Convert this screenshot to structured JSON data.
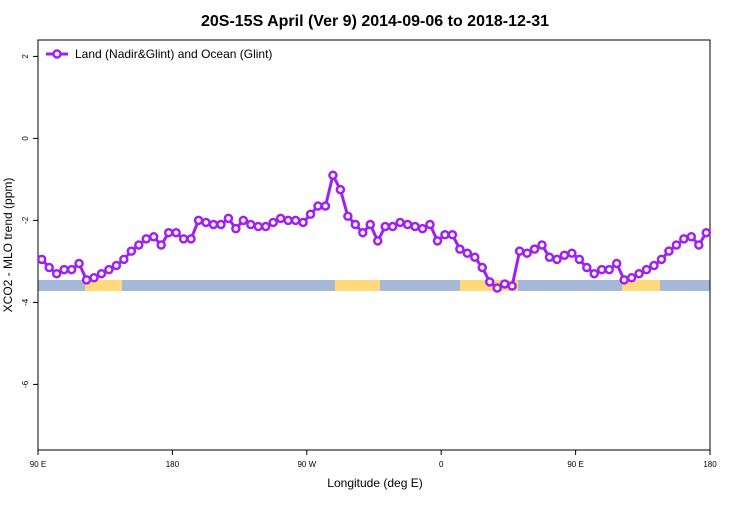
{
  "chart_data": {
    "type": "line",
    "title": "20S-15S April (Ver 9)   2014-09-06 to 2018-12-31",
    "x_label": "Longitude (deg E)",
    "y_label": "XCO2 - MLO trend (ppm)",
    "xlim": [
      90,
      540
    ],
    "ylim": [
      -7.6,
      2.4
    ],
    "xticks": [
      {
        "value": 90,
        "label": "90 E"
      },
      180,
      {
        "value": 270,
        "label": "90 W"
      },
      {
        "value": 360,
        "label": "0"
      },
      {
        "value": 450,
        "label": "90 E"
      },
      {
        "value": 540,
        "label": "180"
      }
    ],
    "yticks": [
      2,
      0,
      -2,
      -4,
      -6
    ],
    "legend": "top-left",
    "x": [
      92.5,
      97.5,
      102.5,
      107.5,
      112.5,
      117.5,
      122.5,
      127.5,
      132.5,
      137.5,
      142.5,
      147.5,
      152.5,
      157.5,
      162.5,
      167.5,
      172.5,
      177.5,
      182.5,
      187.5,
      192.5,
      197.5,
      202.5,
      207.5,
      212.5,
      217.5,
      222.5,
      227.5,
      232.5,
      237.5,
      242.5,
      247.5,
      252.5,
      257.5,
      262.5,
      267.5,
      272.5,
      277.5,
      282.5,
      287.5,
      292.5,
      297.5,
      302.5,
      307.5,
      312.5,
      317.5,
      322.5,
      327.5,
      332.5,
      337.5,
      342.5,
      347.5,
      352.5,
      357.5,
      362.5,
      367.5,
      372.5,
      377.5,
      382.5,
      387.5,
      392.5,
      397.5,
      402.5,
      407.5,
      412.5,
      417.5,
      422.5,
      427.5,
      432.5,
      437.5,
      442.5,
      447.5,
      452.5,
      457.5,
      462.5,
      467.5,
      472.5,
      477.5,
      482.5,
      487.5,
      492.5,
      497.5,
      502.5,
      507.5,
      512.5,
      517.5,
      522.5,
      527.5,
      532.5,
      537.5
    ],
    "series": [
      {
        "name": "Land (Nadir&Glint) and Ocean (Glint)",
        "color": "#a020f0",
        "values": [
          -2.95,
          -3.15,
          -3.3,
          -3.2,
          -3.2,
          -3.05,
          -3.45,
          -3.4,
          -3.3,
          -3.2,
          -3.1,
          -2.95,
          -2.75,
          -2.6,
          -2.45,
          -2.4,
          -2.6,
          -2.3,
          -2.3,
          -2.45,
          -2.45,
          -2.0,
          -2.05,
          -2.1,
          -2.1,
          -1.95,
          -2.2,
          -2.0,
          -2.1,
          -2.15,
          -2.15,
          -2.05,
          -1.95,
          -2.0,
          -2.0,
          -2.05,
          -1.85,
          -1.65,
          -1.65,
          -0.9,
          -1.25,
          -1.9,
          -2.1,
          -2.3,
          -2.1,
          -2.5,
          -2.15,
          -2.15,
          -2.05,
          -2.1,
          -2.15,
          -2.2,
          -2.1,
          -2.5,
          -2.35,
          -2.35,
          -2.7,
          -2.8,
          -2.9,
          -3.15,
          -3.5,
          -3.65,
          -3.55,
          -3.6,
          -2.75,
          -2.8,
          -2.7,
          -2.6,
          -2.9,
          -2.95,
          -2.85,
          -2.8,
          -2.95,
          -3.15,
          -3.3,
          -3.2,
          -3.2,
          -3.05,
          -3.45,
          -3.4,
          -3.3,
          -3.2,
          -3.1,
          -2.95,
          -2.75,
          -2.6,
          -2.45,
          -2.4,
          -2.6,
          -2.3
        ]
      }
    ]
  }
}
